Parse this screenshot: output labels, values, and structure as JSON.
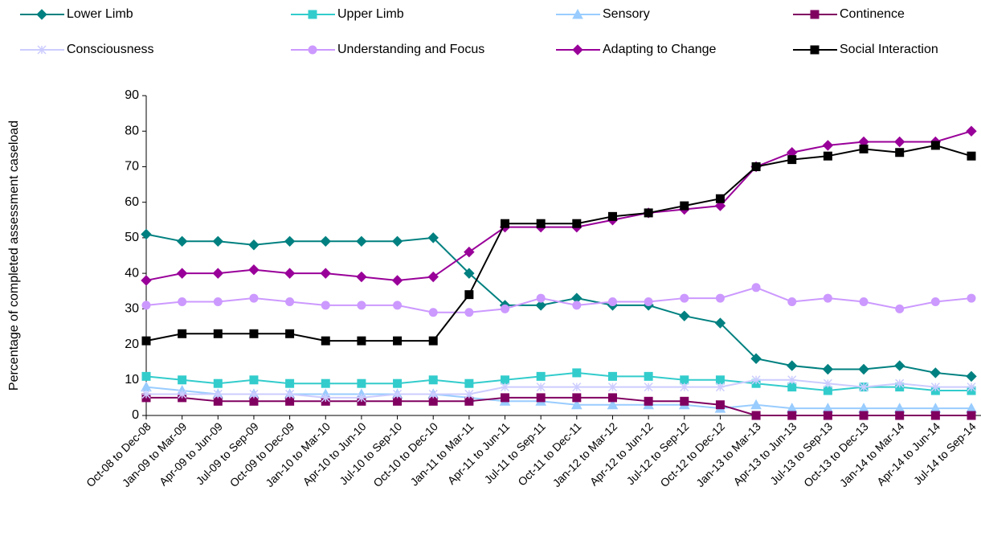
{
  "chart_data": {
    "type": "line",
    "y_label": "Percentage of completed assessment caseload",
    "categories": [
      "Oct-08 to Dec-08",
      "Jan-09 to Mar-09",
      "Apr-09 to Jun-09",
      "Jul-09 to Sep-09",
      "Oct-09 to Dec-09",
      "Jan-10 to Mar-10",
      "Apr-10 to Jun-10",
      "Jul-10 to Sep-10",
      "Oct-10 to Dec-10",
      "Jan-11 to Mar-11",
      "Apr-11 to Jun-11",
      "Jul-11 to Sep-11",
      "Oct-11 to Dec-11",
      "Jan-12 to Mar-12",
      "Apr-12 to Jun-12",
      "Jul-12 to Sep-12",
      "Oct-12 to Dec-12",
      "Jan-13 to Mar-13",
      "Apr-13 to Jun-13",
      "Jul-13 to Sep-13",
      "Oct-13 to Dec-13",
      "Jan-14 to Mar-14",
      "Apr-14 to Jun-14",
      "Jul-14 to Sep-14"
    ],
    "series": [
      {
        "name": "Lower Limb",
        "color": "#008080",
        "marker": "diamond",
        "values": [
          51,
          49,
          49,
          48,
          49,
          49,
          49,
          49,
          50,
          40,
          31,
          31,
          33,
          31,
          31,
          28,
          26,
          16,
          14,
          13,
          13,
          14,
          12,
          11
        ]
      },
      {
        "name": "Upper Limb",
        "color": "#33cccc",
        "marker": "square",
        "values": [
          11,
          10,
          9,
          10,
          9,
          9,
          9,
          9,
          10,
          9,
          10,
          11,
          12,
          11,
          11,
          10,
          10,
          9,
          8,
          7,
          8,
          8,
          7,
          7
        ]
      },
      {
        "name": "Sensory",
        "color": "#99ccff",
        "marker": "triangle",
        "values": [
          8,
          7,
          6,
          6,
          6,
          6,
          6,
          6,
          6,
          5,
          4,
          4,
          3,
          3,
          3,
          3,
          2,
          3,
          2,
          2,
          2,
          2,
          2,
          2
        ]
      },
      {
        "name": "Continence",
        "color": "#800060",
        "marker": "square",
        "values": [
          5,
          5,
          4,
          4,
          4,
          4,
          4,
          4,
          4,
          4,
          5,
          5,
          5,
          5,
          4,
          4,
          3,
          0,
          0,
          0,
          0,
          0,
          0,
          0
        ]
      },
      {
        "name": "Consciousness",
        "color": "#ccccff",
        "marker": "asterisk",
        "values": [
          6,
          6,
          6,
          6,
          6,
          5,
          5,
          6,
          6,
          6,
          8,
          8,
          8,
          8,
          8,
          8,
          8,
          10,
          10,
          9,
          8,
          9,
          8,
          8
        ]
      },
      {
        "name": "Understanding and Focus",
        "color": "#cc99ff",
        "marker": "circle",
        "values": [
          31,
          32,
          32,
          33,
          32,
          31,
          31,
          31,
          29,
          29,
          30,
          33,
          31,
          32,
          32,
          33,
          33,
          36,
          32,
          33,
          32,
          30,
          32,
          33
        ]
      },
      {
        "name": "Adapting to Change",
        "color": "#990099",
        "marker": "diamond",
        "values": [
          38,
          40,
          40,
          41,
          40,
          40,
          39,
          38,
          39,
          46,
          53,
          53,
          53,
          55,
          57,
          58,
          59,
          70,
          74,
          76,
          77,
          77,
          77,
          80
        ]
      },
      {
        "name": "Social Interaction",
        "color": "#000000",
        "marker": "square",
        "values": [
          21,
          23,
          23,
          23,
          23,
          21,
          21,
          21,
          21,
          34,
          54,
          54,
          54,
          56,
          57,
          59,
          61,
          70,
          72,
          73,
          75,
          74,
          76,
          73
        ]
      }
    ],
    "ylim": [
      0,
      90
    ],
    "yticks": [
      0,
      10,
      20,
      30,
      40,
      50,
      60,
      70,
      80,
      90
    ],
    "grid": false,
    "legend": "top"
  }
}
